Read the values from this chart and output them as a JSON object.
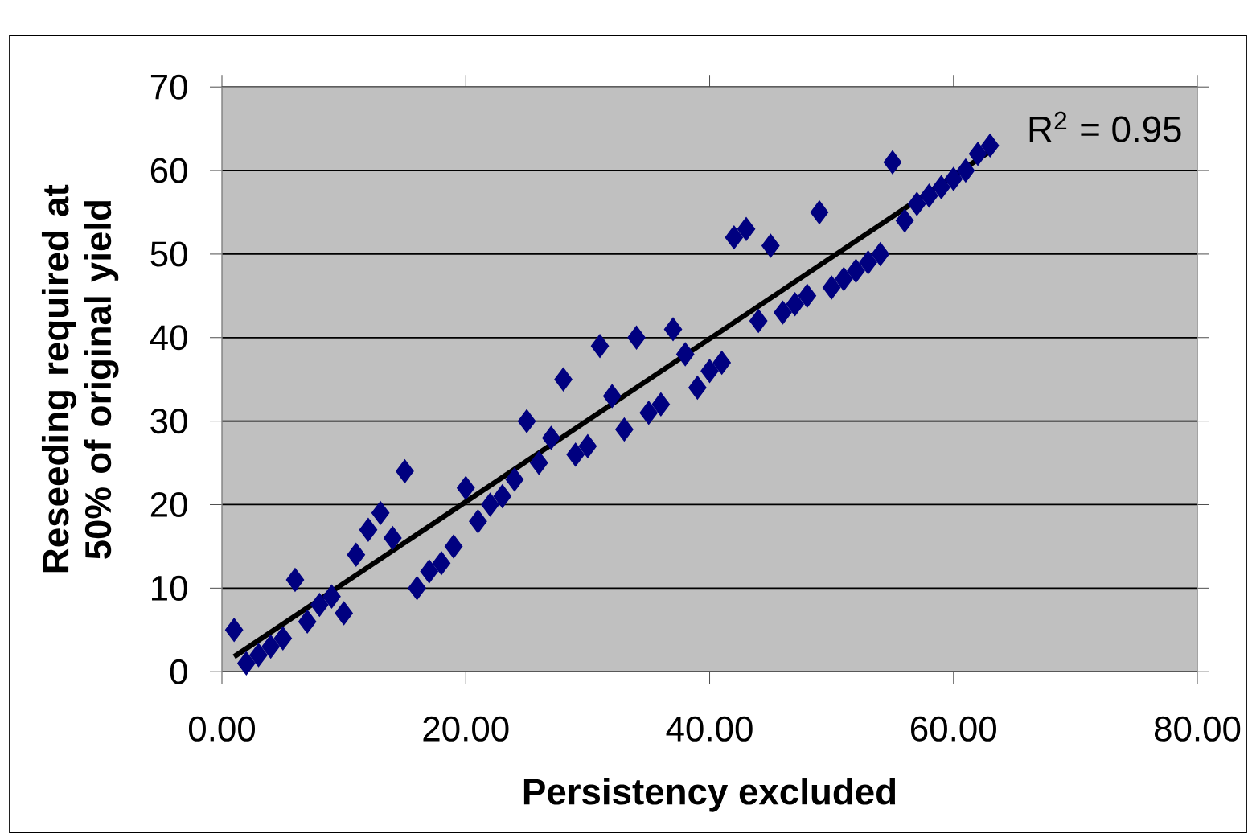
{
  "chart_data": {
    "type": "scatter",
    "xlabel": "Persistency excluded",
    "ylabel": "Reseeding required at 50% of original yield",
    "annotations": [
      "R$^{2}$ = 0.95"
    ],
    "xlim": [
      0,
      80
    ],
    "ylim": [
      0,
      70
    ],
    "xticks": [
      {
        "value": 0,
        "label": "0.00"
      },
      {
        "value": 20,
        "label": "20.00"
      },
      {
        "value": 40,
        "label": "40.00"
      },
      {
        "value": 60,
        "label": "60.00"
      },
      {
        "value": 80,
        "label": "80.00"
      }
    ],
    "yticks": [
      0,
      10,
      20,
      30,
      40,
      50,
      60,
      70
    ],
    "grid": "y",
    "series": [
      {
        "color": "#000080",
        "marker": "diamond",
        "x": [
          1,
          2,
          3,
          4,
          5,
          6,
          7,
          8,
          9,
          10,
          11,
          12,
          13,
          14,
          15,
          16,
          17,
          18,
          19,
          20,
          21,
          22,
          23,
          24,
          25,
          26,
          27,
          28,
          29,
          30,
          31,
          32,
          33,
          34,
          35,
          36,
          37,
          38,
          39,
          40,
          41,
          42,
          43,
          44,
          45,
          46,
          47,
          48,
          49,
          50,
          51,
          52,
          53,
          54,
          55,
          56,
          57,
          58,
          59,
          60,
          61,
          62,
          63
        ],
        "values": [
          5,
          1,
          2,
          3,
          4,
          11,
          6,
          8,
          9,
          7,
          14,
          17,
          19,
          16,
          24,
          10,
          12,
          13,
          15,
          22,
          18,
          20,
          21,
          23,
          30,
          25,
          28,
          35,
          26,
          27,
          39,
          33,
          29,
          40,
          31,
          32,
          41,
          38,
          34,
          36,
          37,
          52,
          53,
          42,
          51,
          43,
          44,
          45,
          55,
          46,
          47,
          48,
          49,
          50,
          61,
          54,
          56,
          57,
          58,
          59,
          60,
          62,
          63
        ]
      },
      {
        "type": "line",
        "color": "#000000",
        "marker": "none",
        "line_style": "solid",
        "x": [
          1,
          63
        ],
        "values": [
          1.8,
          62.3
        ]
      }
    ]
  }
}
